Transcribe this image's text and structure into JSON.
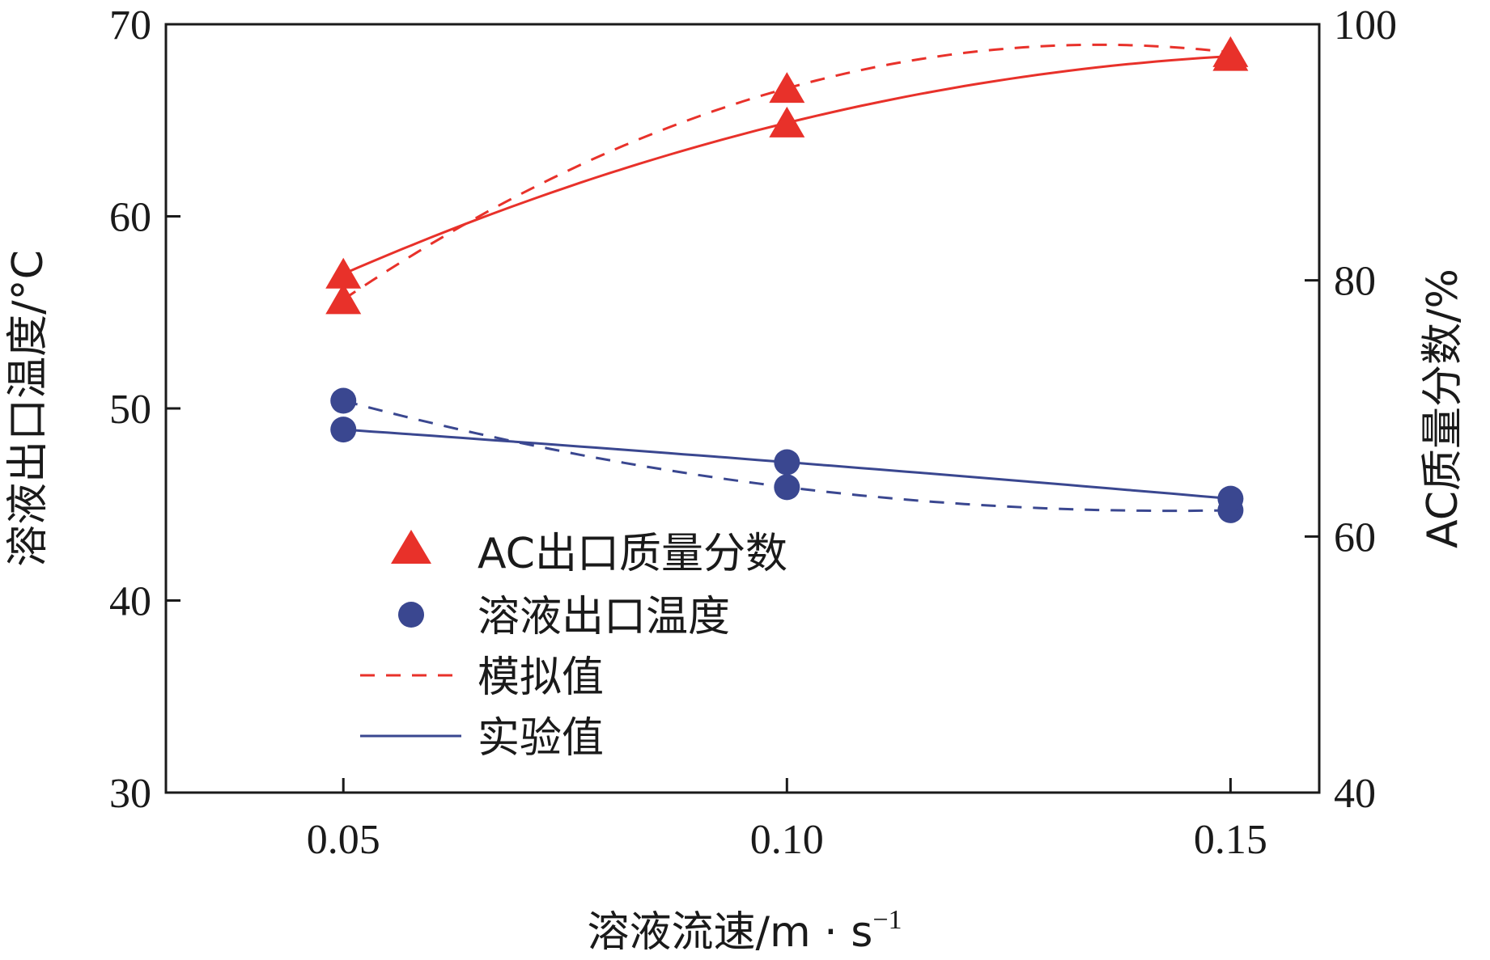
{
  "chart_data": {
    "type": "line",
    "x": [
      0.05,
      0.1,
      0.15
    ],
    "xticks": [
      "0.05",
      "0.10",
      "0.15"
    ],
    "xlim": [
      0.03,
      0.16
    ],
    "xlabel_main": "溶液流速/m · s",
    "xlabel_sup": "−1",
    "y_left": {
      "label": "溶液出口温度/°C",
      "ylim": [
        30,
        70
      ],
      "ticks": [
        "30",
        "40",
        "50",
        "60",
        "70"
      ]
    },
    "y_right": {
      "label": "AC质量分数/%",
      "ylim": [
        40,
        100
      ],
      "ticks": [
        "40",
        "60",
        "80",
        "100"
      ]
    },
    "series": [
      {
        "name": "AC出口质量分数",
        "axis": "right",
        "marker": "triangle",
        "color": "#e8312a",
        "simulated": [
          78.5,
          95.0,
          97.8
        ],
        "experimental": [
          80.5,
          92.3,
          97.5
        ]
      },
      {
        "name": "溶液出口温度",
        "axis": "left",
        "marker": "circle",
        "color": "#3a4790",
        "simulated": [
          50.4,
          45.9,
          44.7
        ],
        "experimental": [
          48.9,
          47.2,
          45.3
        ]
      }
    ],
    "legend": {
      "placement": "center-left",
      "entries": [
        "AC出口质量分数",
        "溶液出口温度",
        "模拟值",
        "实验值"
      ],
      "dashed_label": "模拟值",
      "solid_label": "实验值"
    }
  }
}
